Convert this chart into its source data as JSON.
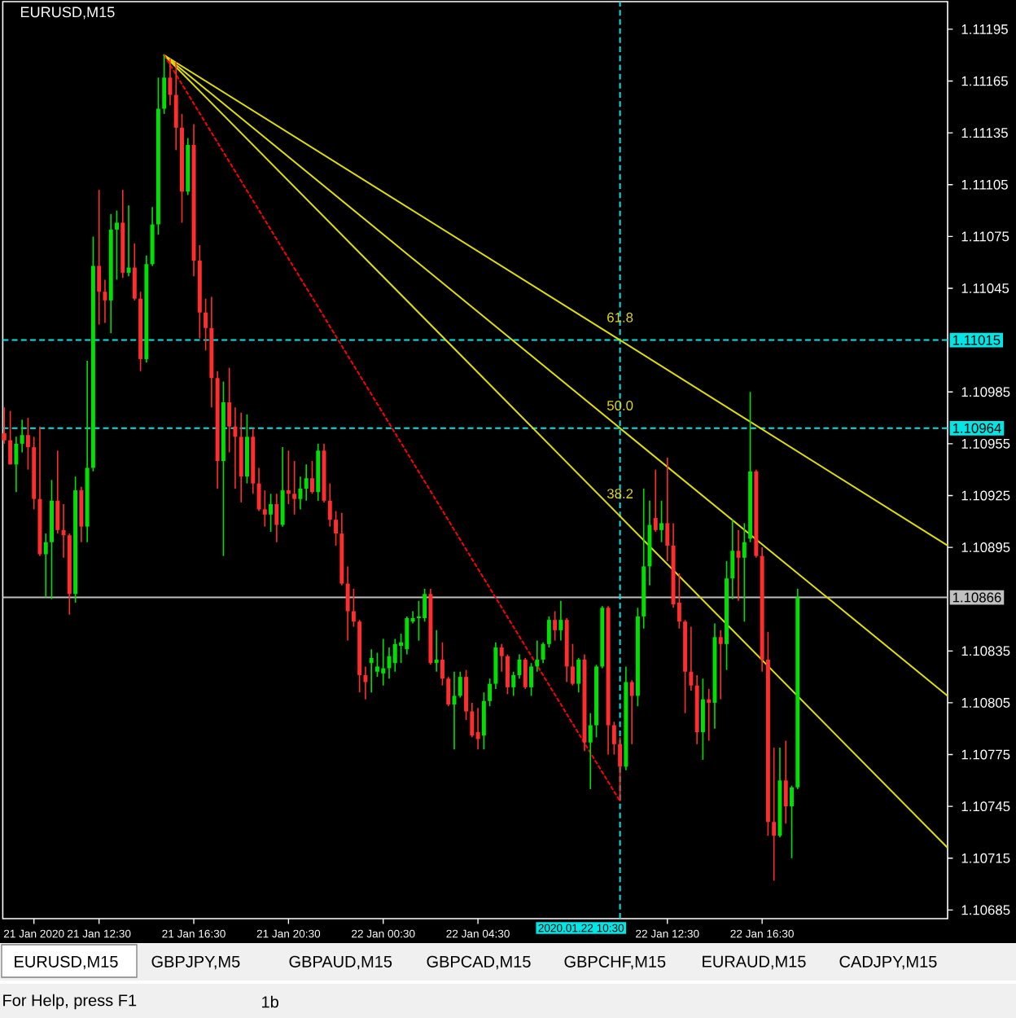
{
  "chart_data": {
    "type": "candlestick",
    "title": "EURUSD,M15",
    "x": [
      "2020-01-21T08:30",
      "2020-01-21T08:45",
      "2020-01-21T09:00",
      "2020-01-21T09:15",
      "2020-01-21T09:30",
      "2020-01-21T09:45",
      "2020-01-21T10:00",
      "2020-01-21T10:15",
      "2020-01-21T10:30",
      "2020-01-21T10:45",
      "2020-01-21T11:00",
      "2020-01-21T11:15",
      "2020-01-21T11:30",
      "2020-01-21T11:45",
      "2020-01-21T12:00",
      "2020-01-21T12:15",
      "2020-01-21T12:30",
      "2020-01-21T12:45",
      "2020-01-21T13:00",
      "2020-01-21T13:15",
      "2020-01-21T13:30",
      "2020-01-21T13:45",
      "2020-01-21T14:00",
      "2020-01-21T14:15",
      "2020-01-21T14:30",
      "2020-01-21T14:45",
      "2020-01-21T15:00",
      "2020-01-21T15:15",
      "2020-01-21T15:30",
      "2020-01-21T15:45",
      "2020-01-21T16:00",
      "2020-01-21T16:15",
      "2020-01-21T16:30",
      "2020-01-21T16:45",
      "2020-01-21T17:00",
      "2020-01-21T17:15",
      "2020-01-21T17:30",
      "2020-01-21T17:45",
      "2020-01-21T18:00",
      "2020-01-21T18:15",
      "2020-01-21T18:30",
      "2020-01-21T18:45",
      "2020-01-21T19:00",
      "2020-01-21T19:15",
      "2020-01-21T19:30",
      "2020-01-21T19:45",
      "2020-01-21T20:00",
      "2020-01-21T20:15",
      "2020-01-21T20:30",
      "2020-01-21T20:45",
      "2020-01-21T21:00",
      "2020-01-21T21:15",
      "2020-01-21T21:30",
      "2020-01-21T21:45",
      "2020-01-21T22:00",
      "2020-01-21T22:15",
      "2020-01-21T22:30",
      "2020-01-21T22:45",
      "2020-01-21T23:00",
      "2020-01-21T23:15",
      "2020-01-21T23:30",
      "2020-01-21T23:45",
      "2020-01-22T00:00",
      "2020-01-22T00:15",
      "2020-01-22T00:30",
      "2020-01-22T00:45",
      "2020-01-22T01:00",
      "2020-01-22T01:15",
      "2020-01-22T01:30",
      "2020-01-22T01:45",
      "2020-01-22T02:00",
      "2020-01-22T02:15",
      "2020-01-22T02:30",
      "2020-01-22T02:45",
      "2020-01-22T03:00",
      "2020-01-22T03:15",
      "2020-01-22T03:30",
      "2020-01-22T03:45",
      "2020-01-22T04:00",
      "2020-01-22T04:15",
      "2020-01-22T04:30",
      "2020-01-22T04:45",
      "2020-01-22T05:00",
      "2020-01-22T05:15",
      "2020-01-22T05:30",
      "2020-01-22T05:45",
      "2020-01-22T06:00",
      "2020-01-22T06:15",
      "2020-01-22T06:30",
      "2020-01-22T06:45",
      "2020-01-22T07:00",
      "2020-01-22T07:15",
      "2020-01-22T07:30",
      "2020-01-22T07:45",
      "2020-01-22T08:00",
      "2020-01-22T08:15",
      "2020-01-22T08:30",
      "2020-01-22T08:45",
      "2020-01-22T09:00",
      "2020-01-22T09:15",
      "2020-01-22T09:30",
      "2020-01-22T09:45",
      "2020-01-22T10:00",
      "2020-01-22T10:15",
      "2020-01-22T10:30",
      "2020-01-22T10:45",
      "2020-01-22T11:00",
      "2020-01-22T11:15",
      "2020-01-22T11:30",
      "2020-01-22T11:45",
      "2020-01-22T12:00",
      "2020-01-22T12:15",
      "2020-01-22T12:30",
      "2020-01-22T12:45",
      "2020-01-22T13:00",
      "2020-01-22T13:15",
      "2020-01-22T13:30",
      "2020-01-22T13:45",
      "2020-01-22T14:00",
      "2020-01-22T14:15",
      "2020-01-22T14:30",
      "2020-01-22T14:45",
      "2020-01-22T15:00",
      "2020-01-22T15:15",
      "2020-01-22T15:30",
      "2020-01-22T15:45",
      "2020-01-22T16:00",
      "2020-01-22T16:15",
      "2020-01-22T16:30",
      "2020-01-22T16:45",
      "2020-01-22T17:00",
      "2020-01-22T17:15",
      "2020-01-22T17:30",
      "2020-01-22T17:45",
      "2020-01-22T18:00"
    ],
    "ohlc": [
      [
        1.10961,
        1.10976,
        1.10955,
        1.10957
      ],
      [
        1.10957,
        1.10974,
        1.10943,
        1.10943
      ],
      [
        1.10943,
        1.10959,
        1.10927,
        1.10955
      ],
      [
        1.10955,
        1.10969,
        1.1095,
        1.1096
      ],
      [
        1.1096,
        1.1097,
        1.1094,
        1.10953
      ],
      [
        1.10953,
        1.10959,
        1.10917,
        1.10923
      ],
      [
        1.10923,
        1.10965,
        1.1089,
        1.10891
      ],
      [
        1.10891,
        1.10903,
        1.10866,
        1.10898
      ],
      [
        1.10898,
        1.10934,
        1.10865,
        1.10922
      ],
      [
        1.10922,
        1.10951,
        1.10903,
        1.10905
      ],
      [
        1.10905,
        1.1092,
        1.10889,
        1.10902
      ],
      [
        1.10902,
        1.10903,
        1.10856,
        1.10868
      ],
      [
        1.10868,
        1.10936,
        1.10863,
        1.10928
      ],
      [
        1.10928,
        1.1093,
        1.10898,
        1.10907
      ],
      [
        1.10907,
        1.11003,
        1.10898,
        1.10941
      ],
      [
        1.10941,
        1.11075,
        1.10939,
        1.11058
      ],
      [
        1.11058,
        1.11102,
        1.11024,
        1.11043
      ],
      [
        1.11043,
        1.1105,
        1.11025,
        1.11038
      ],
      [
        1.11038,
        1.11088,
        1.11019,
        1.11079
      ],
      [
        1.11079,
        1.1109,
        1.1105,
        1.11083
      ],
      [
        1.11083,
        1.11102,
        1.11051,
        1.11054
      ],
      [
        1.11054,
        1.11093,
        1.11052,
        1.11057
      ],
      [
        1.11057,
        1.11071,
        1.11038,
        1.11039
      ],
      [
        1.11039,
        1.11043,
        1.10997,
        1.11004
      ],
      [
        1.11004,
        1.11064,
        1.11002,
        1.11059
      ],
      [
        1.11059,
        1.11092,
        1.11058,
        1.11082
      ],
      [
        1.11082,
        1.11167,
        1.11076,
        1.11149
      ],
      [
        1.11149,
        1.1118,
        1.11146,
        1.11167
      ],
      [
        1.11167,
        1.11178,
        1.11151,
        1.11157
      ],
      [
        1.11157,
        1.11176,
        1.11125,
        1.11138
      ],
      [
        1.11138,
        1.11146,
        1.11083,
        1.11101
      ],
      [
        1.11101,
        1.11132,
        1.11099,
        1.11128
      ],
      [
        1.11128,
        1.1114,
        1.11052,
        1.11061
      ],
      [
        1.11061,
        1.1107,
        1.11016,
        1.11031
      ],
      [
        1.11031,
        1.11039,
        1.11009,
        1.11022
      ],
      [
        1.11022,
        1.1104,
        1.10976,
        1.10993
      ],
      [
        1.10993,
        1.10997,
        1.10929,
        1.10945
      ],
      [
        1.10945,
        1.10991,
        1.1089,
        1.10979
      ],
      [
        1.10979,
        1.10999,
        1.1095,
        1.10965
      ],
      [
        1.10965,
        1.10976,
        1.10929,
        1.10959
      ],
      [
        1.10959,
        1.10973,
        1.10921,
        1.10936
      ],
      [
        1.10936,
        1.10972,
        1.10932,
        1.10959
      ],
      [
        1.10959,
        1.10964,
        1.10926,
        1.10932
      ],
      [
        1.10932,
        1.10941,
        1.10916,
        1.10917
      ],
      [
        1.10917,
        1.10928,
        1.10907,
        1.10914
      ],
      [
        1.10914,
        1.10926,
        1.10904,
        1.1092
      ],
      [
        1.1092,
        1.10926,
        1.10898,
        1.10908
      ],
      [
        1.10908,
        1.10953,
        1.10907,
        1.10928
      ],
      [
        1.10928,
        1.10951,
        1.1092,
        1.10926
      ],
      [
        1.10926,
        1.10945,
        1.10914,
        1.10923
      ],
      [
        1.10923,
        1.10936,
        1.10917,
        1.10929
      ],
      [
        1.10929,
        1.10943,
        1.10922,
        1.10935
      ],
      [
        1.10935,
        1.10945,
        1.10926,
        1.10927
      ],
      [
        1.10927,
        1.10955,
        1.10922,
        1.10951
      ],
      [
        1.10951,
        1.10955,
        1.10921,
        1.10922
      ],
      [
        1.10922,
        1.10932,
        1.10907,
        1.10911
      ],
      [
        1.10911,
        1.10916,
        1.10896,
        1.10903
      ],
      [
        1.10903,
        1.10915,
        1.10873,
        1.10874
      ],
      [
        1.10874,
        1.10884,
        1.10841,
        1.10858
      ],
      [
        1.10858,
        1.10871,
        1.10849,
        1.10852
      ],
      [
        1.10852,
        1.10853,
        1.10811,
        1.10821
      ],
      [
        1.10821,
        1.10826,
        1.10807,
        1.10817
      ],
      [
        1.10828,
        1.10836,
        1.10811,
        1.10831
      ],
      [
        1.10823,
        1.10834,
        1.1082,
        1.10826
      ],
      [
        1.10822,
        1.10842,
        1.10815,
        1.10825
      ],
      [
        1.10825,
        1.10837,
        1.10819,
        1.10832
      ],
      [
        1.10828,
        1.10842,
        1.10823,
        1.10839
      ],
      [
        1.10838,
        1.10845,
        1.10828,
        1.1084
      ],
      [
        1.10836,
        1.10855,
        1.10833,
        1.10854
      ],
      [
        1.10852,
        1.10858,
        1.10851,
        1.10854
      ],
      [
        1.10854,
        1.10864,
        1.10841,
        1.10855
      ],
      [
        1.10854,
        1.10871,
        1.10852,
        1.10868
      ],
      [
        1.10868,
        1.10871,
        1.10827,
        1.10828
      ],
      [
        1.10828,
        1.10847,
        1.10823,
        1.1083
      ],
      [
        1.1083,
        1.1084,
        1.10815,
        1.10819
      ],
      [
        1.10819,
        1.1082,
        1.10803,
        1.10804
      ],
      [
        1.10804,
        1.10823,
        1.10778,
        1.10809
      ],
      [
        1.10809,
        1.10823,
        1.10808,
        1.1082
      ],
      [
        1.1082,
        1.10824,
        1.10795,
        1.108
      ],
      [
        1.108,
        1.10805,
        1.10785,
        1.10786
      ],
      [
        1.10788,
        1.10802,
        1.10778,
        1.10784
      ],
      [
        1.10786,
        1.10811,
        1.10778,
        1.10806
      ],
      [
        1.10806,
        1.10819,
        1.10803,
        1.10816
      ],
      [
        1.10816,
        1.1084,
        1.10813,
        1.10837
      ],
      [
        1.10837,
        1.10839,
        1.10823,
        1.10832
      ],
      [
        1.10832,
        1.10833,
        1.1081,
        1.10814
      ],
      [
        1.10814,
        1.10823,
        1.10809,
        1.10821
      ],
      [
        1.10821,
        1.10833,
        1.10819,
        1.1083
      ],
      [
        1.1083,
        1.10831,
        1.10813,
        1.10814
      ],
      [
        1.10814,
        1.10828,
        1.10809,
        1.10826
      ],
      [
        1.10826,
        1.10841,
        1.10823,
        1.1083
      ],
      [
        1.1083,
        1.1084,
        1.10828,
        1.10839
      ],
      [
        1.10839,
        1.10855,
        1.10837,
        1.10853
      ],
      [
        1.10853,
        1.10858,
        1.10841,
        1.10847
      ],
      [
        1.10847,
        1.10864,
        1.10841,
        1.10853
      ],
      [
        1.10853,
        1.10854,
        1.10817,
        1.10826
      ],
      [
        1.10826,
        1.10839,
        1.10815,
        1.10816
      ],
      [
        1.10816,
        1.10831,
        1.10811,
        1.1083
      ],
      [
        1.1083,
        1.10833,
        1.10777,
        1.10782
      ],
      [
        1.10782,
        1.10799,
        1.10755,
        1.10792
      ],
      [
        1.10792,
        1.10827,
        1.10785,
        1.10826
      ],
      [
        1.10826,
        1.10861,
        1.10825,
        1.1086
      ],
      [
        1.1086,
        1.10861,
        1.10775,
        1.10792
      ],
      [
        1.10792,
        1.10794,
        1.10775,
        1.10781
      ],
      [
        1.10781,
        1.10785,
        1.10748,
        1.10768
      ],
      [
        1.10768,
        1.10826,
        1.10766,
        1.10817
      ],
      [
        1.10817,
        1.10818,
        1.10781,
        1.10809
      ],
      [
        1.10809,
        1.1086,
        1.10803,
        1.10855
      ],
      [
        1.10855,
        1.10929,
        1.10848,
        1.10884
      ],
      [
        1.10884,
        1.10922,
        1.10873,
        1.10908
      ],
      [
        1.10912,
        1.1094,
        1.10904,
        1.10905
      ],
      [
        1.10905,
        1.10922,
        1.10898,
        1.10909
      ],
      [
        1.10909,
        1.10947,
        1.10887,
        1.10896
      ],
      [
        1.10896,
        1.10909,
        1.1086,
        1.10862
      ],
      [
        1.10863,
        1.1088,
        1.10848,
        1.10852
      ],
      [
        1.10852,
        1.10853,
        1.10799,
        1.10823
      ],
      [
        1.10823,
        1.10849,
        1.10812,
        1.10815
      ],
      [
        1.10815,
        1.10821,
        1.10781,
        1.10788
      ],
      [
        1.10788,
        1.10819,
        1.10772,
        1.10807
      ],
      [
        1.10807,
        1.10813,
        1.10783,
        1.10805
      ],
      [
        1.10805,
        1.10851,
        1.1079,
        1.10843
      ],
      [
        1.10843,
        1.10847,
        1.10807,
        1.10839
      ],
      [
        1.10839,
        1.10887,
        1.10824,
        1.10877
      ],
      [
        1.10877,
        1.10911,
        1.10865,
        1.10893
      ],
      [
        1.10893,
        1.10905,
        1.10864,
        1.10889
      ],
      [
        1.10889,
        1.10909,
        1.10852,
        1.10898
      ],
      [
        1.109,
        1.10985,
        1.10898,
        1.10939
      ],
      [
        1.10939,
        1.1094,
        1.10889,
        1.1089
      ],
      [
        1.1089,
        1.10895,
        1.10823,
        1.1083
      ],
      [
        1.1083,
        1.10846,
        1.10728,
        1.10736
      ],
      [
        1.10736,
        1.10779,
        1.10702,
        1.10728
      ],
      [
        1.10728,
        1.10779,
        1.10727,
        1.1076
      ],
      [
        1.1076,
        1.10783,
        1.10735,
        1.10745
      ],
      [
        1.10745,
        1.10757,
        1.10715,
        1.10756
      ],
      [
        1.10756,
        1.10871,
        1.10755,
        1.10866
      ]
    ],
    "colors": [
      "#ff2d2d",
      "#ff2d2d",
      "#00e000",
      "#00e000",
      "#ff2d2d",
      "#ff2d2d",
      "#ff2d2d",
      "#00e000",
      "#00e000",
      "#ff2d2d",
      "#ff2d2d",
      "#ff2d2d",
      "#00e000",
      "#ff2d2d",
      "#00e000",
      "#00e000",
      "#ff2d2d",
      "#ff2d2d",
      "#00e000",
      "#00e000",
      "#ff2d2d",
      "#00e000",
      "#ff2d2d",
      "#ff2d2d",
      "#00e000",
      "#00e000",
      "#00e000",
      "#00e000",
      "#ff2d2d",
      "#ff2d2d",
      "#ff2d2d",
      "#00e000",
      "#ff2d2d",
      "#ff2d2d",
      "#ff2d2d",
      "#ff2d2d",
      "#ff2d2d",
      "#00e000",
      "#ff2d2d",
      "#ff2d2d",
      "#ff2d2d",
      "#00e000",
      "#ff2d2d",
      "#ff2d2d",
      "#ff2d2d",
      "#00e000",
      "#ff2d2d",
      "#00e000",
      "#ff2d2d",
      "#ff2d2d",
      "#00e000",
      "#00e000",
      "#ff2d2d",
      "#00e000",
      "#ff2d2d",
      "#ff2d2d",
      "#ff2d2d",
      "#ff2d2d",
      "#ff2d2d",
      "#ff2d2d",
      "#ff2d2d",
      "#ff2d2d",
      "#00e000",
      "#00e000",
      "#00e000",
      "#00e000",
      "#00e000",
      "#00e000",
      "#00e000",
      "#00e000",
      "#00e000",
      "#00e000",
      "#ff2d2d",
      "#00e000",
      "#ff2d2d",
      "#ff2d2d",
      "#00e000",
      "#00e000",
      "#ff2d2d",
      "#ff2d2d",
      "#ff2d2d",
      "#00e000",
      "#00e000",
      "#00e000",
      "#ff2d2d",
      "#ff2d2d",
      "#00e000",
      "#00e000",
      "#ff2d2d",
      "#00e000",
      "#00e000",
      "#00e000",
      "#00e000",
      "#ff2d2d",
      "#00e000",
      "#ff2d2d",
      "#ff2d2d",
      "#00e000",
      "#ff2d2d",
      "#00e000",
      "#00e000",
      "#00e000",
      "#ff2d2d",
      "#ff2d2d",
      "#ff2d2d",
      "#00e000",
      "#ff2d2d",
      "#00e000",
      "#00e000",
      "#00e000",
      "#ff2d2d",
      "#00e000",
      "#ff2d2d",
      "#ff2d2d",
      "#ff2d2d",
      "#ff2d2d",
      "#ff2d2d",
      "#ff2d2d",
      "#00e000",
      "#ff2d2d",
      "#00e000",
      "#ff2d2d",
      "#00e000",
      "#00e000",
      "#ff2d2d",
      "#00e000",
      "#00e000",
      "#ff2d2d",
      "#ff2d2d",
      "#ff2d2d",
      "#ff2d2d",
      "#00e000",
      "#ff2d2d",
      "#00e000",
      "#00e000"
    ],
    "series": [
      {
        "type": "line",
        "x": [
          "2020-01-21T15:15",
          "2020-01-22T10:30",
          "2020-01-23T00:20"
        ],
        "values": [
          1.1118,
          1.11015,
          1.10896
        ],
        "color": "#e0e000",
        "line_style": "solid"
      },
      {
        "type": "line",
        "x": [
          "2020-01-21T15:15",
          "2020-01-22T10:30",
          "2020-01-23T00:20"
        ],
        "values": [
          1.1118,
          1.10964,
          1.10809
        ],
        "color": "#e0e000",
        "line_style": "solid"
      },
      {
        "type": "line",
        "x": [
          "2020-01-21T15:15",
          "2020-01-22T10:30",
          "2020-01-23T00:20"
        ],
        "values": [
          1.1118,
          1.10913,
          1.10721
        ],
        "color": "#e0e000",
        "line_style": "solid"
      },
      {
        "type": "line",
        "x": [
          "2020-01-21T15:15",
          "2020-01-22T10:30"
        ],
        "values": [
          1.1118,
          1.10748
        ],
        "color": "#ff0000",
        "line_style": "dotted"
      }
    ],
    "xlim": [
      "2020-01-21T08:26",
      "2020-01-23T00:20"
    ],
    "ylim": [
      1.1068,
      1.11211
    ],
    "xticks": [
      {
        "value": "2020-01-21T09:45",
        "label": "21 Jan 2020"
      },
      {
        "value": "2020-01-21T12:30",
        "label": "21 Jan 12:30"
      },
      {
        "value": "2020-01-21T16:30",
        "label": "21 Jan 16:30"
      },
      {
        "value": "2020-01-21T20:30",
        "label": "21 Jan 20:30"
      },
      {
        "value": "2020-01-22T00:30",
        "label": "22 Jan 00:30"
      },
      {
        "value": "2020-01-22T04:30",
        "label": "22 Jan 04:30"
      },
      {
        "value": "2020-01-22T12:30",
        "label": "22 Jan 12:30"
      },
      {
        "value": "2020-01-22T16:30",
        "label": "22 Jan 16:30"
      }
    ],
    "yticks": [
      1.11195,
      1.11165,
      1.11135,
      1.11105,
      1.11075,
      1.11045,
      1.10985,
      1.10955,
      1.10925,
      1.10895,
      1.10835,
      1.10805,
      1.10775,
      1.10745,
      1.10715,
      1.10685
    ],
    "ref_lines": [
      {
        "axis": "y",
        "value": 1.11015,
        "label": "1.11015",
        "color": "#00e5e5",
        "line_style": "dashed"
      },
      {
        "axis": "y",
        "value": 1.10964,
        "label": "1.10964",
        "color": "#00e5e5",
        "line_style": "dashed"
      },
      {
        "axis": "y",
        "value": 1.10866,
        "label": "1.10866",
        "color": "#c0c0c0",
        "line_style": "solid"
      },
      {
        "axis": "x",
        "value": "2020-01-22T10:30",
        "label": "2020.01.22 10:30",
        "color": "#00e5e5",
        "line_style": "dashed"
      }
    ],
    "annotations": [
      {
        "text": "61.8",
        "x": "2020-01-22T10:30",
        "y": 1.11015
      },
      {
        "text": "50.0",
        "x": "2020-01-22T10:30",
        "y": 1.10964
      },
      {
        "text": "38.2",
        "x": "2020-01-22T10:30",
        "y": 1.10913
      },
      "EURUSD,M15",
      "GBPJPY,M5",
      "GBPAUD,M15",
      "GBPCAD,M15",
      "GBPCHF,M15",
      "EURAUD,M15",
      "CADJPY,M15",
      "For Help, press F1",
      "1b"
    ]
  }
}
